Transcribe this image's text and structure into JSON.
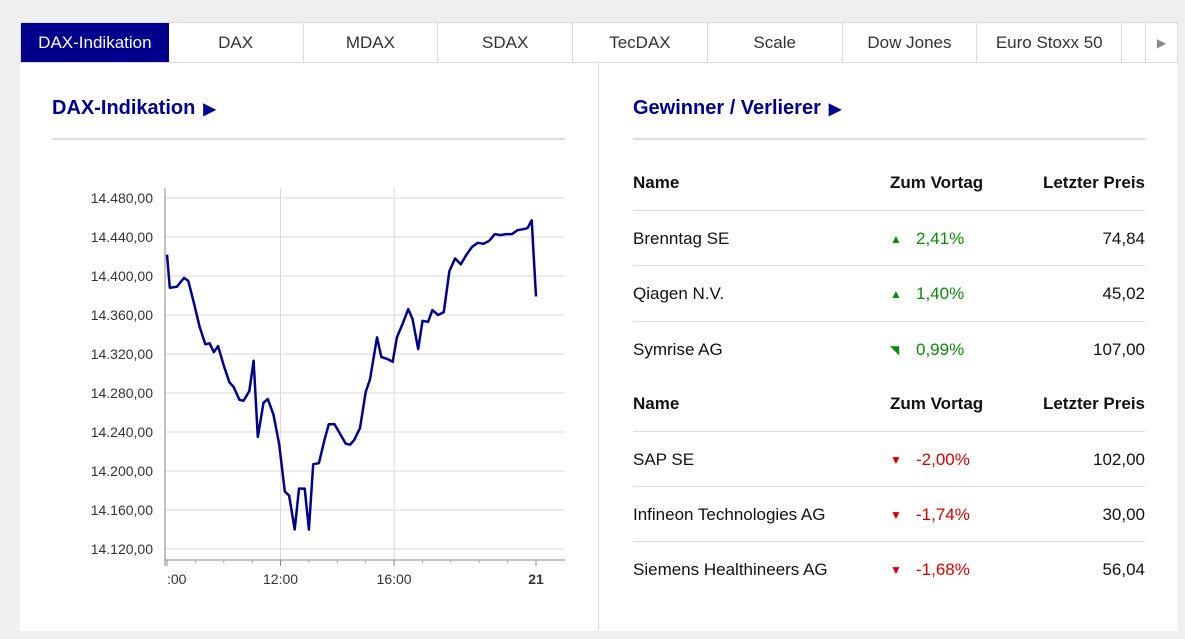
{
  "tabs": [
    {
      "label": "DAX-Indikation",
      "active": true
    },
    {
      "label": "DAX"
    },
    {
      "label": "MDAX"
    },
    {
      "label": "SDAX"
    },
    {
      "label": "TecDAX"
    },
    {
      "label": "Scale"
    },
    {
      "label": "Dow Jones"
    },
    {
      "label": "Euro Stoxx 50"
    }
  ],
  "tabs_more_icon": "play-right-icon",
  "left": {
    "title": "DAX-Indikation",
    "title_arrow": "▶"
  },
  "right": {
    "title": "Gewinner / Verlierer",
    "title_arrow": "▶",
    "headers": {
      "name": "Name",
      "change": "Zum Vortag",
      "price": "Letzter Preis"
    },
    "gainers": [
      {
        "name": "Brenntag SE",
        "change": "2,41%",
        "price": "74,84"
      },
      {
        "name": "Qiagen N.V.",
        "change": "1,40%",
        "price": "45,02"
      },
      {
        "name": "Symrise AG",
        "change": "0,99%",
        "price": "107,00"
      }
    ],
    "losers": [
      {
        "name": "SAP SE",
        "change": "-2,00%",
        "price": "102,00"
      },
      {
        "name": "Infineon Technologies AG",
        "change": "-1,74%",
        "price": "30,00"
      },
      {
        "name": "Siemens Healthineers AG",
        "change": "-1,68%",
        "price": "56,04"
      }
    ]
  },
  "colors": {
    "accent": "#00008c",
    "up": "#0b8a0b",
    "down": "#d40000",
    "line": "#00008c"
  },
  "chart_data": {
    "type": "line",
    "xlabel": "",
    "ylabel": "",
    "x_tick_labels": [
      ":00",
      "12:00",
      "16:00",
      "21"
    ],
    "y_tick_labels": [
      "14.480,00",
      "14.440,00",
      "14.400,00",
      "14.360,00",
      "14.320,00",
      "14.280,00",
      "14.240,00",
      "14.200,00",
      "14.160,00",
      "14.120,00"
    ],
    "ylim": [
      14110,
      14490
    ],
    "xlim": [
      8,
      21
    ],
    "grid": true,
    "series": [
      {
        "values": [
          [
            8.0,
            14422
          ],
          [
            8.1,
            14388
          ],
          [
            8.35,
            14389
          ],
          [
            8.6,
            14398
          ],
          [
            8.75,
            14395
          ],
          [
            8.95,
            14372
          ],
          [
            9.15,
            14348
          ],
          [
            9.35,
            14330
          ],
          [
            9.5,
            14331
          ],
          [
            9.65,
            14322
          ],
          [
            9.8,
            14328
          ],
          [
            10.0,
            14308
          ],
          [
            10.2,
            14291
          ],
          [
            10.35,
            14286
          ],
          [
            10.55,
            14273
          ],
          [
            10.7,
            14272
          ],
          [
            10.9,
            14282
          ],
          [
            11.05,
            14313
          ],
          [
            11.2,
            14235
          ],
          [
            11.4,
            14270
          ],
          [
            11.55,
            14274
          ],
          [
            11.75,
            14258
          ],
          [
            11.95,
            14228
          ],
          [
            12.15,
            14179
          ],
          [
            12.3,
            14175
          ],
          [
            12.5,
            14140
          ],
          [
            12.65,
            14182
          ],
          [
            12.85,
            14182
          ],
          [
            13.0,
            14140
          ],
          [
            13.15,
            14207
          ],
          [
            13.35,
            14208
          ],
          [
            13.55,
            14232
          ],
          [
            13.7,
            14248
          ],
          [
            13.9,
            14248
          ],
          [
            14.1,
            14238
          ],
          [
            14.3,
            14228
          ],
          [
            14.45,
            14227
          ],
          [
            14.6,
            14232
          ],
          [
            14.8,
            14244
          ],
          [
            15.0,
            14281
          ],
          [
            15.15,
            14294
          ],
          [
            15.4,
            14337
          ],
          [
            15.55,
            14317
          ],
          [
            15.75,
            14315
          ],
          [
            15.95,
            14312
          ],
          [
            16.1,
            14337
          ],
          [
            16.3,
            14351
          ],
          [
            16.5,
            14366
          ],
          [
            16.65,
            14356
          ],
          [
            16.85,
            14325
          ],
          [
            17.0,
            14354
          ],
          [
            17.2,
            14353
          ],
          [
            17.35,
            14365
          ],
          [
            17.55,
            14360
          ],
          [
            17.75,
            14363
          ],
          [
            17.95,
            14405
          ],
          [
            18.15,
            14418
          ],
          [
            18.35,
            14412
          ],
          [
            18.55,
            14422
          ],
          [
            18.75,
            14430
          ],
          [
            18.95,
            14434
          ],
          [
            19.15,
            14433
          ],
          [
            19.35,
            14436
          ],
          [
            19.55,
            14443
          ],
          [
            19.75,
            14442
          ],
          [
            19.95,
            14443
          ],
          [
            20.15,
            14443
          ],
          [
            20.35,
            14447
          ],
          [
            20.55,
            14448
          ],
          [
            20.7,
            14449
          ],
          [
            20.85,
            14457
          ],
          [
            21.0,
            14379
          ]
        ]
      }
    ]
  }
}
